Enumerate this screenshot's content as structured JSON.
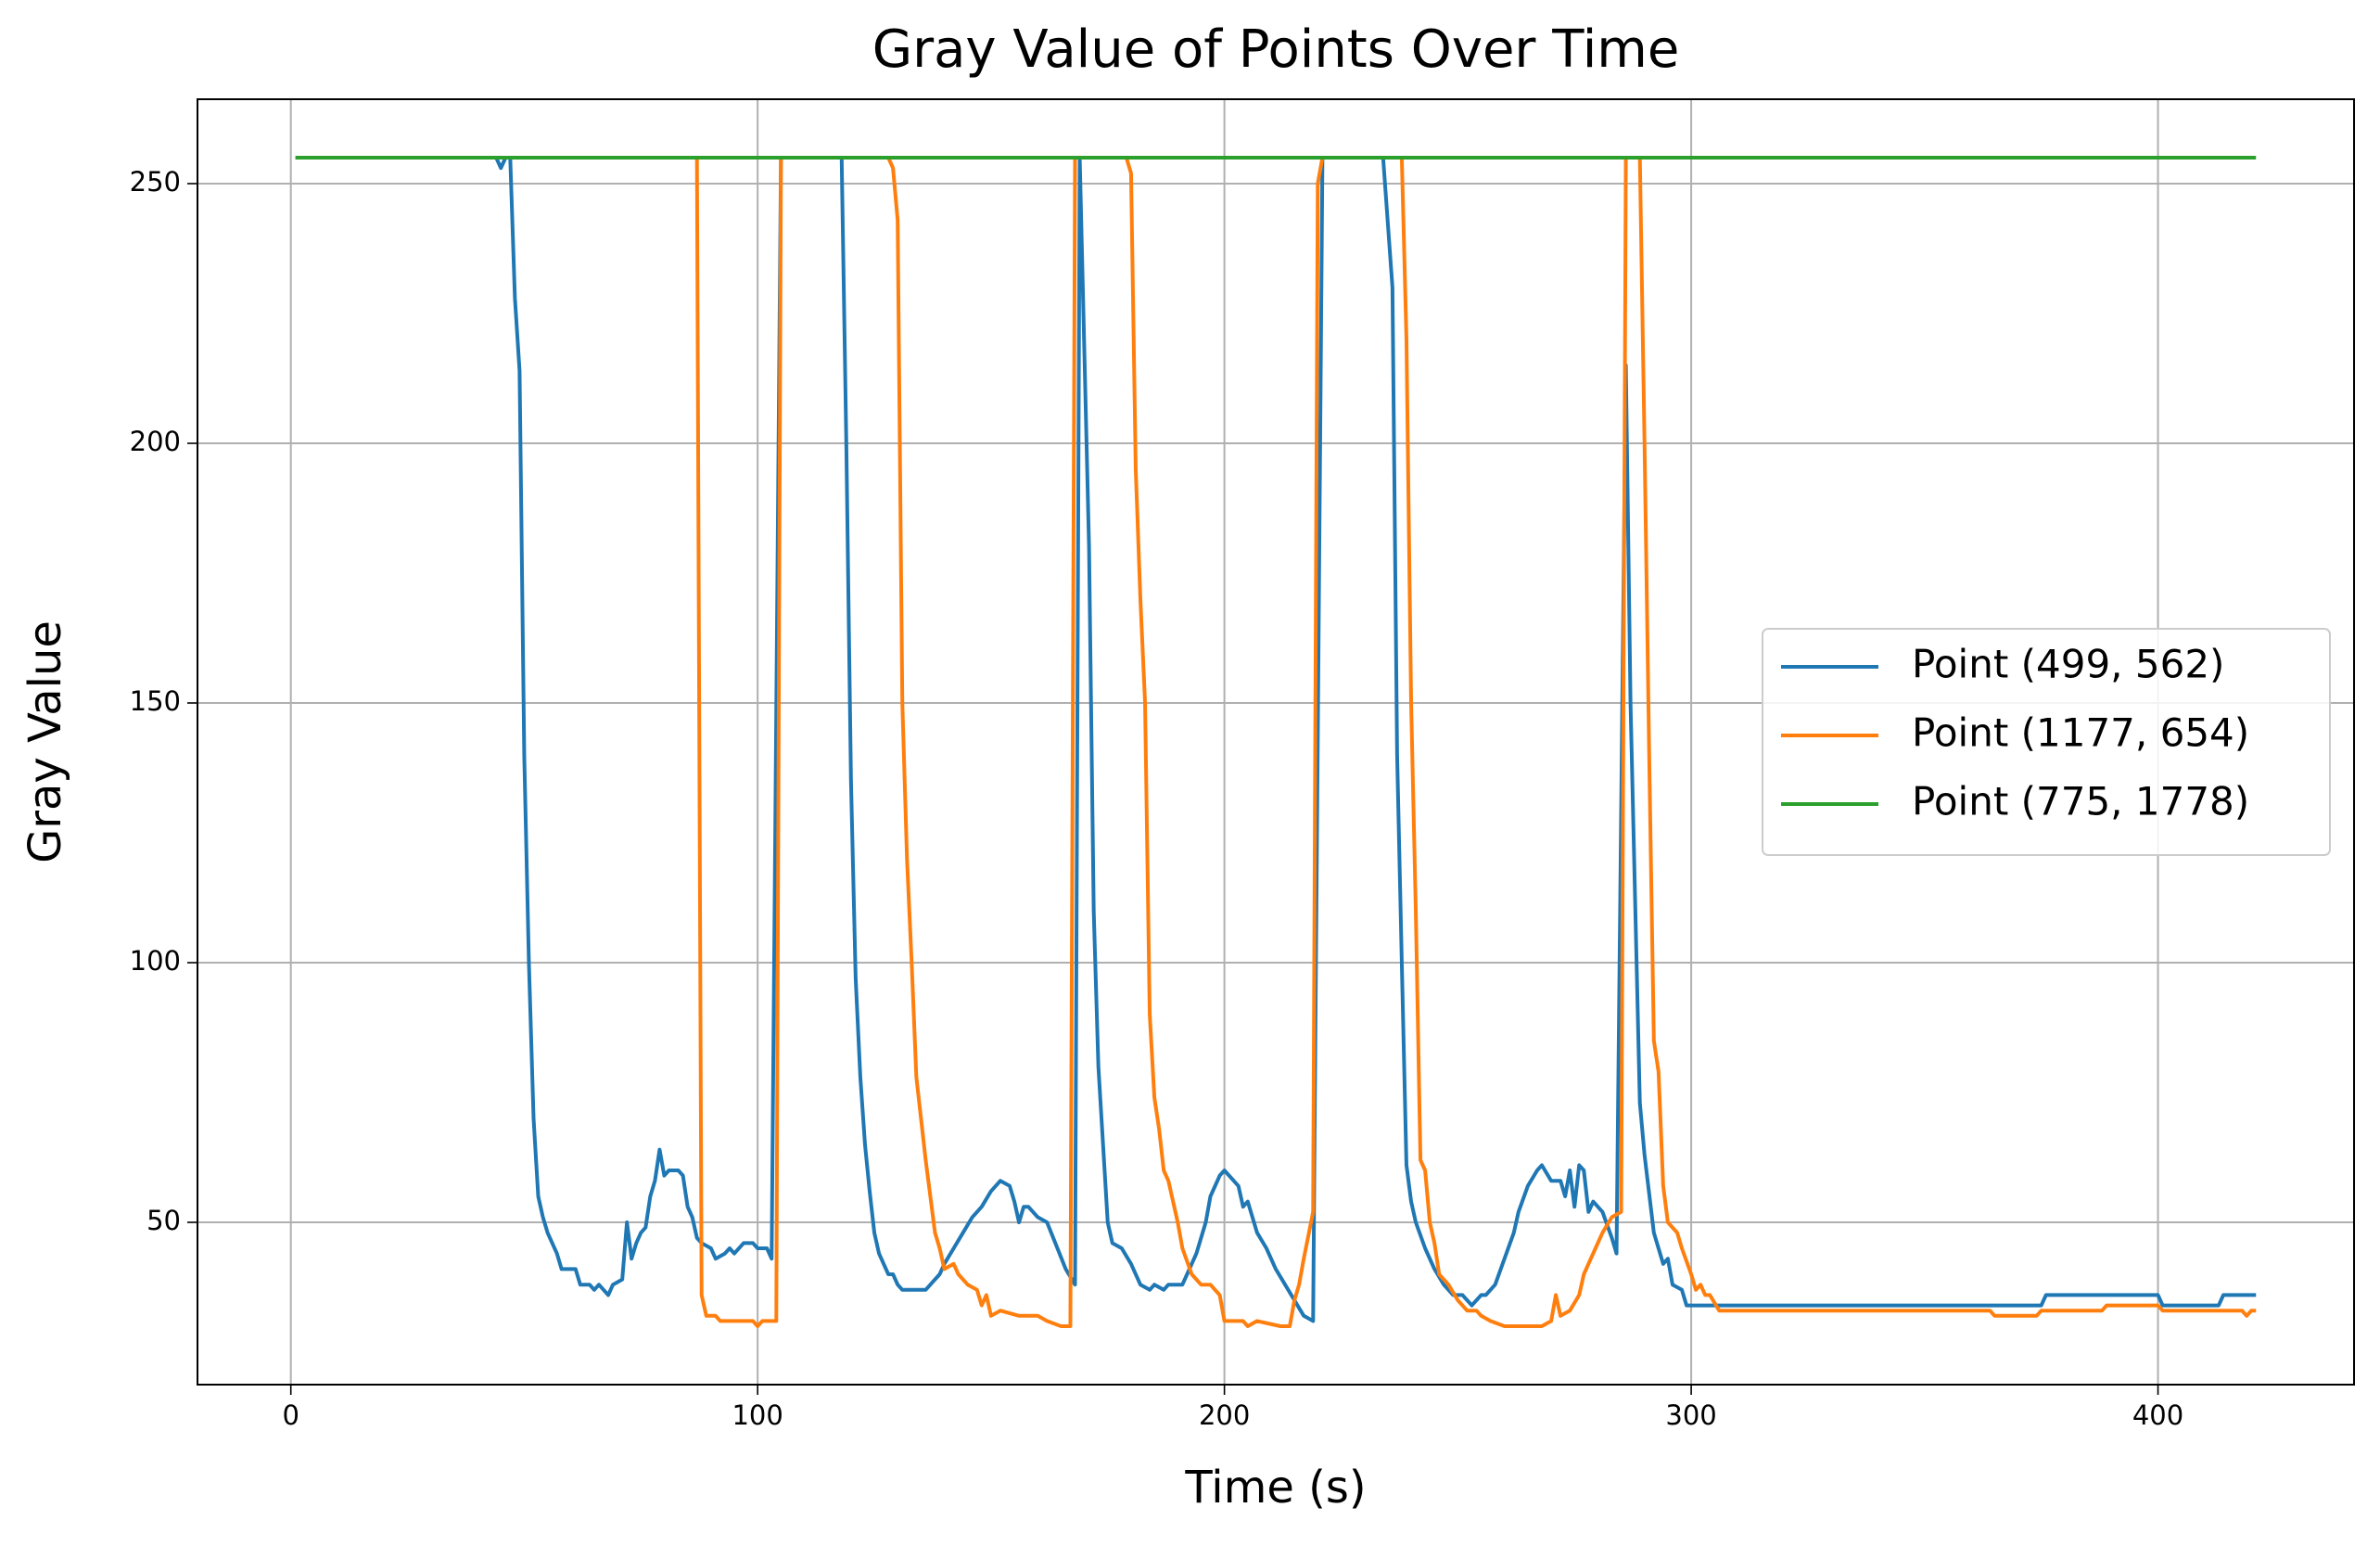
{
  "chart_data": {
    "type": "line",
    "title": "Gray Value of Points Over Time",
    "x_label": "Time (s)",
    "y_label": "Gray Value",
    "xlim": [
      -20,
      442
    ],
    "ylim": [
      18.75,
      266.25
    ],
    "xticks": [
      0,
      100,
      200,
      300,
      400
    ],
    "yticks": [
      50,
      100,
      150,
      200,
      250
    ],
    "grid": true,
    "legend": "center right",
    "series": [
      {
        "name": "Point (499, 562)",
        "color": "#1f77b4",
        "x": [
          1,
          44,
          45,
          46,
          47,
          48,
          49,
          50,
          51,
          52,
          53,
          54,
          55,
          56,
          57,
          58,
          60,
          61,
          62,
          64,
          65,
          66,
          68,
          69,
          71,
          72,
          73,
          74,
          75,
          76,
          77,
          78,
          79,
          80,
          81,
          83,
          84,
          85,
          86,
          87,
          88,
          90,
          91,
          93,
          94,
          95,
          97,
          99,
          100,
          102,
          103,
          105,
          118,
          119,
          120,
          121,
          122,
          123,
          124,
          125,
          126,
          127,
          128,
          129,
          130,
          131,
          136,
          137,
          139,
          140,
          142,
          144,
          146,
          148,
          150,
          152,
          154,
          155,
          156,
          157,
          158,
          160,
          162,
          166,
          168,
          169,
          171,
          172,
          173,
          174,
          175,
          176,
          178,
          180,
          182,
          184,
          185,
          187,
          188,
          191,
          192,
          194,
          196,
          197,
          199,
          200,
          202,
          203,
          204,
          205,
          207,
          209,
          211,
          213,
          215,
          217,
          219,
          221,
          234,
          236,
          237,
          238,
          239,
          240,
          241,
          243,
          245,
          247,
          249,
          251,
          253,
          255,
          256,
          258,
          260,
          262,
          263,
          265,
          267,
          268,
          270,
          272,
          273,
          274,
          275,
          276,
          277,
          278,
          279,
          281,
          283,
          284,
          286,
          287,
          289,
          290,
          292,
          293,
          294,
          295,
          296,
          298,
          299,
          375,
          376,
          400,
          401,
          413,
          414,
          421
        ],
        "values": [
          255,
          255,
          253,
          255,
          255,
          228,
          214,
          140,
          100,
          70,
          55,
          51,
          48,
          46,
          44,
          41,
          41,
          41,
          38,
          38,
          37,
          38,
          36,
          38,
          39,
          50,
          43,
          46,
          48,
          49,
          55,
          58,
          64,
          59,
          60,
          60,
          59,
          53,
          51,
          47,
          46,
          45,
          43,
          44,
          45,
          44,
          46,
          46,
          45,
          45,
          43,
          255,
          255,
          200,
          135,
          97,
          78,
          65,
          56,
          48,
          44,
          42,
          40,
          40,
          38,
          37,
          37,
          38,
          40,
          42,
          45,
          48,
          51,
          53,
          56,
          58,
          57,
          54,
          50,
          53,
          53,
          51,
          50,
          41,
          38,
          255,
          180,
          110,
          80,
          65,
          50,
          46,
          45,
          42,
          38,
          37,
          38,
          37,
          38,
          38,
          40,
          44,
          50,
          55,
          59,
          60,
          58,
          57,
          53,
          54,
          48,
          45,
          41,
          38,
          35,
          32,
          31,
          255,
          255,
          230,
          140,
          100,
          61,
          54,
          50,
          45,
          41,
          38,
          36,
          36,
          34,
          36,
          36,
          38,
          43,
          48,
          52,
          57,
          60,
          61,
          58,
          58,
          55,
          60,
          53,
          61,
          60,
          52,
          54,
          52,
          47,
          44,
          215,
          150,
          73,
          63,
          48,
          45,
          42,
          43,
          38,
          37,
          34,
          34,
          36,
          36,
          34,
          34,
          36,
          36
        ]
      },
      {
        "name": "Point (1177, 654)",
        "color": "#ff7f0e",
        "x": [
          1,
          87,
          88,
          89,
          91,
          92,
          99,
          100,
          101,
          104,
          105,
          128,
          129,
          130,
          131,
          132,
          133,
          134,
          135,
          136,
          137,
          138,
          139,
          140,
          142,
          143,
          145,
          147,
          148,
          149,
          150,
          152,
          156,
          160,
          162,
          165,
          167,
          168,
          179,
          180,
          181,
          182,
          183,
          184,
          185,
          186,
          187,
          188,
          189,
          190,
          191,
          193,
          195,
          197,
          199,
          200,
          204,
          205,
          207,
          212,
          214,
          215,
          216,
          217,
          219,
          220,
          221,
          238,
          239,
          240,
          241,
          242,
          243,
          244,
          245,
          246,
          248,
          250,
          252,
          254,
          255,
          257,
          260,
          268,
          270,
          271,
          272,
          274,
          276,
          277,
          279,
          281,
          283,
          285,
          286,
          289,
          290,
          291,
          292,
          293,
          294,
          295,
          297,
          298,
          300,
          301,
          302,
          303,
          304,
          306,
          364,
          365,
          374,
          375,
          388,
          389,
          400,
          401,
          418,
          419,
          420,
          421
        ],
        "values": [
          255,
          255,
          36,
          32,
          32,
          31,
          31,
          30,
          31,
          31,
          255,
          255,
          253,
          243,
          150,
          120,
          100,
          78,
          70,
          62,
          55,
          48,
          45,
          41,
          42,
          40,
          38,
          37,
          34,
          36,
          32,
          33,
          32,
          32,
          31,
          30,
          30,
          255,
          255,
          252,
          195,
          170,
          150,
          90,
          74,
          68,
          60,
          58,
          54,
          50,
          45,
          40,
          38,
          38,
          36,
          31,
          31,
          30,
          31,
          30,
          30,
          35,
          38,
          43,
          52,
          250,
          255,
          255,
          220,
          150,
          110,
          62,
          60,
          50,
          46,
          40,
          38,
          35,
          33,
          33,
          32,
          31,
          30,
          30,
          31,
          36,
          32,
          33,
          36,
          40,
          44,
          48,
          51,
          52,
          255,
          255,
          200,
          140,
          85,
          79,
          57,
          50,
          48,
          45,
          40,
          37,
          38,
          36,
          36,
          33,
          33,
          32,
          32,
          33,
          33,
          34,
          34,
          33,
          33,
          32,
          33,
          33
        ]
      },
      {
        "name": "Point (775, 1778)",
        "color": "#2ca02c",
        "x": [
          1,
          421
        ],
        "values": [
          255,
          255
        ]
      }
    ]
  }
}
